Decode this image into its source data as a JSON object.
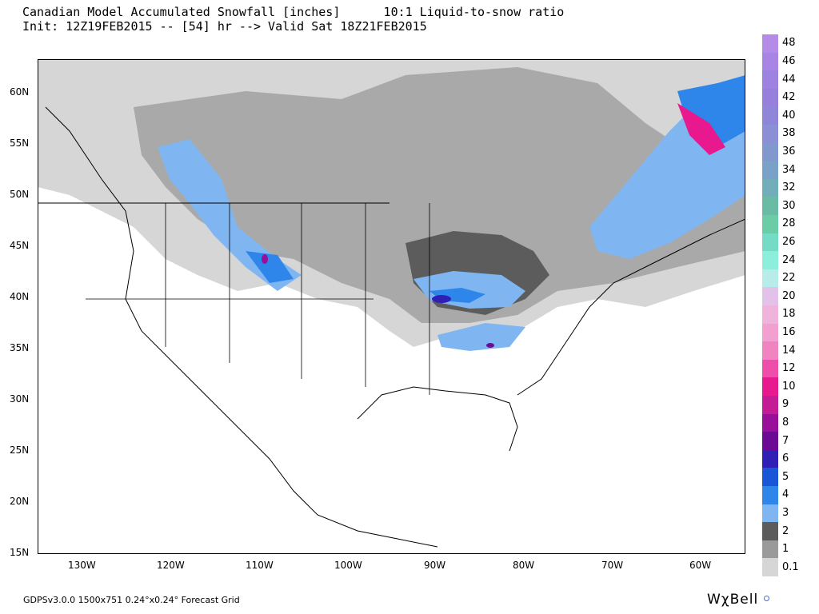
{
  "header": {
    "title_line1": "Canadian Model Accumulated Snowfall [inches]      10:1 Liquid-to-snow ratio",
    "title_line2": "Init: 12Z19FEB2015 -- [54] hr --> Valid Sat 18Z21FEB2015"
  },
  "map": {
    "latitude_labels": [
      "60N",
      "55N",
      "50N",
      "45N",
      "40N",
      "35N",
      "30N",
      "25N",
      "20N",
      "15N"
    ],
    "longitude_labels": [
      "130W",
      "120W",
      "110W",
      "100W",
      "90W",
      "80W",
      "70W",
      "60W"
    ],
    "extent": {
      "lon_min": -135,
      "lon_max": -55,
      "lat_min": 15,
      "lat_max": 63
    }
  },
  "legend": {
    "labels": [
      "48",
      "46",
      "44",
      "42",
      "40",
      "38",
      "36",
      "34",
      "32",
      "30",
      "28",
      "26",
      "24",
      "22",
      "20",
      "18",
      "16",
      "14",
      "12",
      "10",
      "9",
      "8",
      "7",
      "6",
      "5",
      "4",
      "3",
      "2",
      "1",
      "0.1"
    ],
    "colors": [
      "#b48ce8",
      "#a885e4",
      "#9e82e2",
      "#9780dc",
      "#8f86da",
      "#8a8fd6",
      "#8198cf",
      "#7aa2c8",
      "#71aeb9",
      "#69bba6",
      "#6acda6",
      "#74dcc4",
      "#8deedc",
      "#b8ece9",
      "#e2c2e8",
      "#f0b4dc",
      "#f1a0d0",
      "#ef84c0",
      "#ee4ea9",
      "#e8188e",
      "#c41c95",
      "#9a0f99",
      "#6c0a95",
      "#2f1fb5",
      "#1a57d8",
      "#2f86ea",
      "#7fb6f2",
      "#5c5c5c",
      "#9a9a9a",
      "#d6d6d6"
    ]
  },
  "footer": {
    "grid_info": "GDPSv3.0.0 1500x751 0.24°x0.24° Forecast Grid",
    "brand": "WχBell"
  }
}
